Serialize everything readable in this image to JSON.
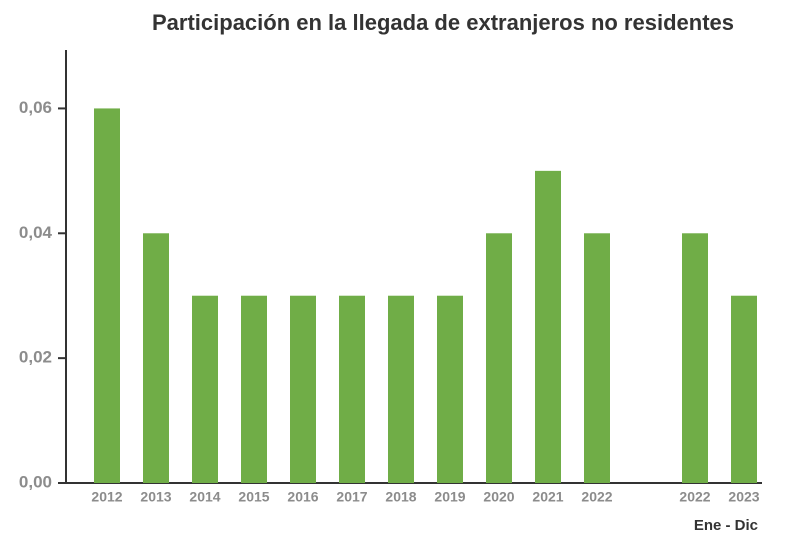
{
  "chart_data": {
    "type": "bar",
    "title": "Participación en la llegada de extranjeros no residentes",
    "categories": [
      "2012",
      "2013",
      "2014",
      "2015",
      "2016",
      "2017",
      "2018",
      "2019",
      "2020",
      "2021",
      "2022",
      null,
      "2022",
      "2023"
    ],
    "values": [
      0.06,
      0.04,
      0.03,
      0.03,
      0.03,
      0.03,
      0.03,
      0.03,
      0.04,
      0.05,
      0.04,
      null,
      0.04,
      0.03
    ],
    "color": "#70ad47",
    "ylim": [
      0,
      0.07
    ],
    "yticks": [
      {
        "value": 0,
        "label": "0,00"
      },
      {
        "value": 0.02,
        "label": "0,02"
      },
      {
        "value": 0.04,
        "label": "0,04"
      },
      {
        "value": 0.06,
        "label": "0,06"
      }
    ],
    "grid": false,
    "annotation": "Ene - Dic"
  }
}
